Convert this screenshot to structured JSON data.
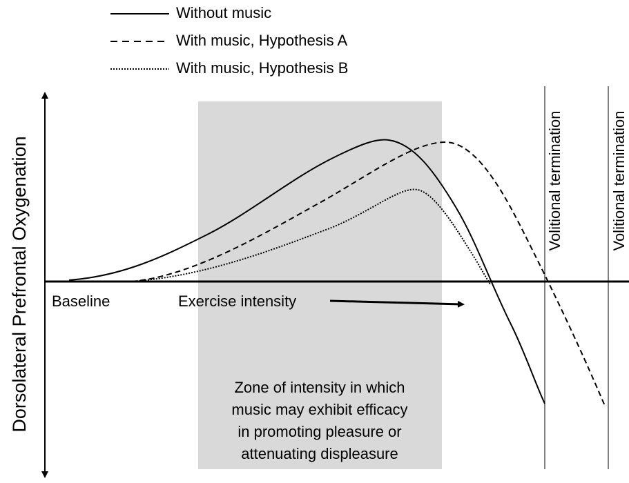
{
  "legend": [
    "Without music",
    "With music, Hypothesis A",
    "With music, Hypothesis B"
  ],
  "y_axis_label": "Dorsolateral Prefrontal Oxygenation",
  "x_labels": {
    "baseline": "Baseline",
    "intensity": "Exercise intensity"
  },
  "zone_text": [
    "Zone of intensity in which",
    "music may exhibit efficacy",
    "in promoting pleasure or",
    "attenuating displeasure"
  ],
  "termination_labels": [
    "Volitional termination",
    "Volitional termination"
  ]
}
